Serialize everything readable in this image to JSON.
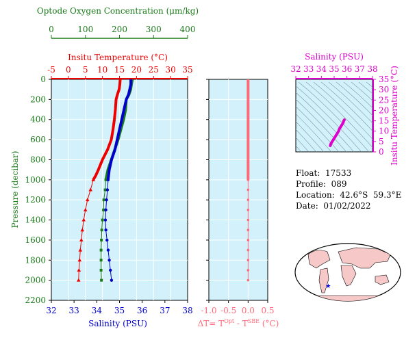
{
  "chart_data": [
    {
      "type": "line",
      "title": "",
      "ylabel": "Pressure (decibar)",
      "ylim": [
        0,
        2200
      ],
      "yticks": [
        0,
        200,
        400,
        600,
        800,
        1000,
        1200,
        1400,
        1600,
        1800,
        2000,
        2200
      ],
      "axes": {
        "temperature": {
          "label": "Insitu Temperature (°C)",
          "range": [
            -5,
            35
          ],
          "ticks": [
            -5,
            0,
            5,
            10,
            15,
            20,
            25,
            30,
            35
          ],
          "color": "#ee0000"
        },
        "oxygen": {
          "label": "Optode Oxygen Concentration (μm/kg)",
          "range": [
            0,
            400
          ],
          "ticks": [
            0,
            100,
            200,
            300,
            400
          ],
          "color": "#1a7a1a"
        },
        "salinity": {
          "label": "Salinity (PSU)",
          "range": [
            32,
            38
          ],
          "ticks": [
            32,
            33,
            34,
            35,
            36,
            37,
            38
          ],
          "color": "#0000cc"
        }
      },
      "series": [
        {
          "axis": "temperature",
          "color": "#ee0000",
          "points": [
            [
              15.2,
              0
            ],
            [
              15.1,
              50
            ],
            [
              14.9,
              100
            ],
            [
              14.4,
              150
            ],
            [
              14.0,
              200
            ],
            [
              13.8,
              300
            ],
            [
              13.5,
              400
            ],
            [
              13.1,
              500
            ],
            [
              12.6,
              600
            ],
            [
              11.5,
              700
            ],
            [
              10.0,
              800
            ],
            [
              8.8,
              900
            ],
            [
              8.0,
              960
            ],
            [
              7.3,
              1000
            ],
            [
              6.5,
              1100
            ],
            [
              5.6,
              1200
            ],
            [
              5.0,
              1300
            ],
            [
              4.5,
              1400
            ],
            [
              4.1,
              1500
            ],
            [
              3.8,
              1600
            ],
            [
              3.5,
              1700
            ],
            [
              3.3,
              1800
            ],
            [
              3.1,
              1900
            ],
            [
              3.0,
              2000
            ]
          ]
        },
        {
          "axis": "oxygen",
          "color": "#1a7a1a",
          "points": [
            [
              238,
              0
            ],
            [
              235,
              50
            ],
            [
              233,
              100
            ],
            [
              228,
              150
            ],
            [
              220,
              200
            ],
            [
              218,
              300
            ],
            [
              212,
              400
            ],
            [
              204,
              500
            ],
            [
              196,
              600
            ],
            [
              186,
              700
            ],
            [
              176,
              800
            ],
            [
              166,
              900
            ],
            [
              160,
              1000
            ],
            [
              158,
              1100
            ],
            [
              154,
              1200
            ],
            [
              153,
              1300
            ],
            [
              150,
              1400
            ],
            [
              148,
              1500
            ],
            [
              147,
              1600
            ],
            [
              146,
              1700
            ],
            [
              146,
              1800
            ],
            [
              146,
              1900
            ],
            [
              147,
              2000
            ]
          ]
        },
        {
          "axis": "salinity",
          "color": "#0000cc",
          "points": [
            [
              35.5,
              0
            ],
            [
              35.5,
              50
            ],
            [
              35.45,
              100
            ],
            [
              35.4,
              150
            ],
            [
              35.3,
              200
            ],
            [
              35.2,
              300
            ],
            [
              35.1,
              400
            ],
            [
              35.0,
              500
            ],
            [
              34.9,
              600
            ],
            [
              34.8,
              700
            ],
            [
              34.65,
              800
            ],
            [
              34.55,
              900
            ],
            [
              34.5,
              1000
            ],
            [
              34.47,
              1100
            ],
            [
              34.43,
              1200
            ],
            [
              34.4,
              1300
            ],
            [
              34.38,
              1400
            ],
            [
              34.4,
              1500
            ],
            [
              34.45,
              1600
            ],
            [
              34.5,
              1700
            ],
            [
              34.55,
              1800
            ],
            [
              34.6,
              1900
            ],
            [
              34.65,
              2000
            ]
          ]
        }
      ],
      "xlabel": "Salinity (PSU)"
    },
    {
      "type": "line",
      "xlabel": "ΔT= T^Opt - T^SBE (°C)",
      "xlim": [
        -1.0,
        0.5
      ],
      "xticks": [
        -1.0,
        -0.5,
        0.0,
        0.5
      ],
      "ylim": [
        0,
        2200
      ],
      "series": [
        {
          "color": "#ff6a7a",
          "points": [
            [
              0.0,
              0
            ],
            [
              0.01,
              100
            ],
            [
              0.0,
              200
            ],
            [
              0.0,
              300
            ],
            [
              0.0,
              400
            ],
            [
              0.0,
              500
            ],
            [
              0.0,
              600
            ],
            [
              0.0,
              700
            ],
            [
              0.0,
              800
            ],
            [
              0.0,
              900
            ],
            [
              0.0,
              1000
            ],
            [
              0.0,
              1100
            ],
            [
              0.0,
              1200
            ],
            [
              0.0,
              1300
            ],
            [
              0.0,
              1400
            ],
            [
              0.0,
              1500
            ],
            [
              0.0,
              1600
            ],
            [
              0.0,
              1700
            ],
            [
              0.0,
              1800
            ],
            [
              0.0,
              1900
            ],
            [
              0.0,
              2000
            ]
          ]
        }
      ]
    },
    {
      "type": "line",
      "title": "Salinity (PSU)",
      "xlim": [
        32,
        38
      ],
      "xticks": [
        32,
        33,
        34,
        35,
        36,
        37,
        38
      ],
      "ylabel": "Insitu Temperature (°C)",
      "ylim": [
        0,
        35
      ],
      "yticks": [
        0,
        5,
        10,
        15,
        20,
        25,
        30,
        35
      ],
      "color": "#dd00cc",
      "series": [
        {
          "color": "#dd00cc",
          "points": [
            [
              34.7,
              3.0
            ],
            [
              34.75,
              4.0
            ],
            [
              34.85,
              5.0
            ],
            [
              34.95,
              6.0
            ],
            [
              35.05,
              7.0
            ],
            [
              35.15,
              8.0
            ],
            [
              35.25,
              9.0
            ],
            [
              35.35,
              10.0
            ],
            [
              35.4,
              11.0
            ],
            [
              35.5,
              12.0
            ],
            [
              35.6,
              13.0
            ],
            [
              35.7,
              14.0
            ],
            [
              35.75,
              15.0
            ],
            [
              35.8,
              15.5
            ]
          ]
        }
      ]
    }
  ],
  "info": {
    "float": "Float:  17533",
    "profile": "Profile:  089",
    "location": "Location:  42.6°S  59.3°E",
    "date": "Date:  01/02/2022"
  },
  "map": {
    "marker_lat": -42.6,
    "marker_lon": 59.3
  }
}
